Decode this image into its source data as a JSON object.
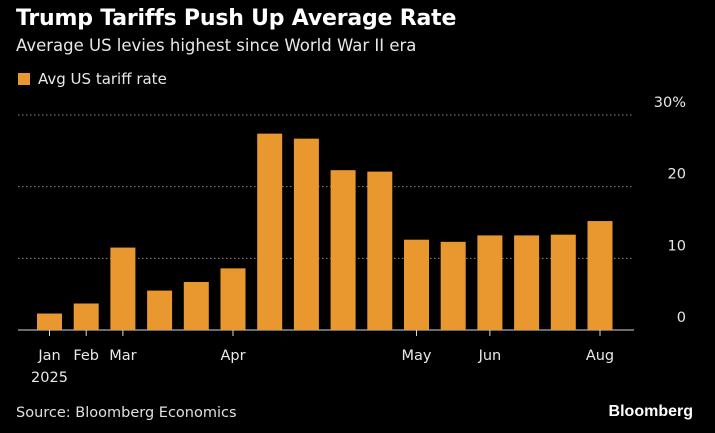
{
  "header": {
    "title": "Trump Tariffs Push Up Average Rate",
    "subtitle": "Average US levies highest since World War II era"
  },
  "legend": {
    "label": "Avg US tariff rate"
  },
  "footer": {
    "source": "Source: Bloomberg Economics",
    "brand": "Bloomberg"
  },
  "colors": {
    "bar": "#e8982f",
    "background": "#000000",
    "grid": "#8a8a8a"
  },
  "chart_data": {
    "type": "bar",
    "series": [
      {
        "name": "Avg US tariff rate",
        "values": [
          2.3,
          3.7,
          11.5,
          5.5,
          6.7,
          8.6,
          27.4,
          26.7,
          22.3,
          22.1,
          12.6,
          12.3,
          13.2,
          13.2,
          13.3,
          15.2
        ]
      }
    ],
    "x_labels": [
      {
        "index": 0,
        "label": "Jan"
      },
      {
        "index": 1,
        "label": "Feb"
      },
      {
        "index": 2,
        "label": "Mar"
      },
      {
        "index": 5,
        "label": "Apr"
      },
      {
        "index": 10,
        "label": "May"
      },
      {
        "index": 12,
        "label": "Jun"
      },
      {
        "index": 15,
        "label": "Aug"
      }
    ],
    "year_label": "2025",
    "y_ticks": [
      "0",
      "10",
      "20",
      "30%"
    ],
    "y_tick_values": [
      0,
      10,
      20,
      30
    ],
    "ylim": [
      0,
      30
    ],
    "grid": true,
    "y_axis_side": "right",
    "legend_position": "top-left"
  }
}
